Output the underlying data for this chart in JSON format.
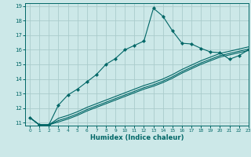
{
  "bg_color": "#cce8e8",
  "grid_color": "#aacccc",
  "line_color": "#006666",
  "x_label": "Humidex (Indice chaleur)",
  "xlim": [
    -0.5,
    23
  ],
  "ylim": [
    10.8,
    19.2
  ],
  "yticks": [
    11,
    12,
    13,
    14,
    15,
    16,
    17,
    18,
    19
  ],
  "xticks": [
    0,
    1,
    2,
    3,
    4,
    5,
    6,
    7,
    8,
    9,
    10,
    11,
    12,
    13,
    14,
    15,
    16,
    17,
    18,
    19,
    20,
    21,
    22,
    23
  ],
  "line1_x": [
    0,
    1,
    2,
    3,
    4,
    5,
    6,
    7,
    8,
    9,
    10,
    11,
    12,
    13,
    14,
    15,
    16,
    17,
    18,
    19,
    20,
    21,
    22,
    23
  ],
  "line1_y": [
    11.35,
    10.85,
    10.85,
    12.2,
    12.9,
    13.3,
    13.8,
    14.3,
    15.0,
    15.4,
    16.0,
    16.3,
    16.6,
    18.85,
    18.3,
    17.3,
    16.45,
    16.4,
    16.1,
    15.85,
    15.8,
    15.35,
    15.6,
    16.0
  ],
  "line2_x": [
    0,
    1,
    2,
    3,
    4,
    5,
    6,
    7,
    8,
    9,
    10,
    11,
    12,
    13,
    14,
    15,
    16,
    17,
    18,
    19,
    20,
    21,
    22,
    23
  ],
  "line2_y": [
    11.35,
    10.85,
    10.85,
    11.3,
    11.5,
    11.75,
    12.05,
    12.3,
    12.55,
    12.8,
    13.05,
    13.3,
    13.55,
    13.75,
    14.0,
    14.3,
    14.65,
    14.95,
    15.25,
    15.5,
    15.75,
    15.9,
    16.05,
    16.2
  ],
  "line3_x": [
    0,
    1,
    2,
    3,
    4,
    5,
    6,
    7,
    8,
    9,
    10,
    11,
    12,
    13,
    14,
    15,
    16,
    17,
    18,
    19,
    20,
    21,
    22,
    23
  ],
  "line3_y": [
    11.35,
    10.85,
    10.85,
    11.15,
    11.35,
    11.6,
    11.9,
    12.15,
    12.4,
    12.65,
    12.9,
    13.15,
    13.4,
    13.6,
    13.85,
    14.15,
    14.5,
    14.8,
    15.1,
    15.35,
    15.6,
    15.75,
    15.9,
    16.05
  ],
  "line4_x": [
    0,
    1,
    2,
    3,
    4,
    5,
    6,
    7,
    8,
    9,
    10,
    11,
    12,
    13,
    14,
    15,
    16,
    17,
    18,
    19,
    20,
    21,
    22,
    23
  ],
  "line4_y": [
    11.35,
    10.85,
    10.85,
    11.05,
    11.25,
    11.5,
    11.8,
    12.05,
    12.3,
    12.55,
    12.8,
    13.05,
    13.3,
    13.5,
    13.75,
    14.05,
    14.4,
    14.7,
    15.0,
    15.25,
    15.5,
    15.65,
    15.8,
    15.95
  ]
}
